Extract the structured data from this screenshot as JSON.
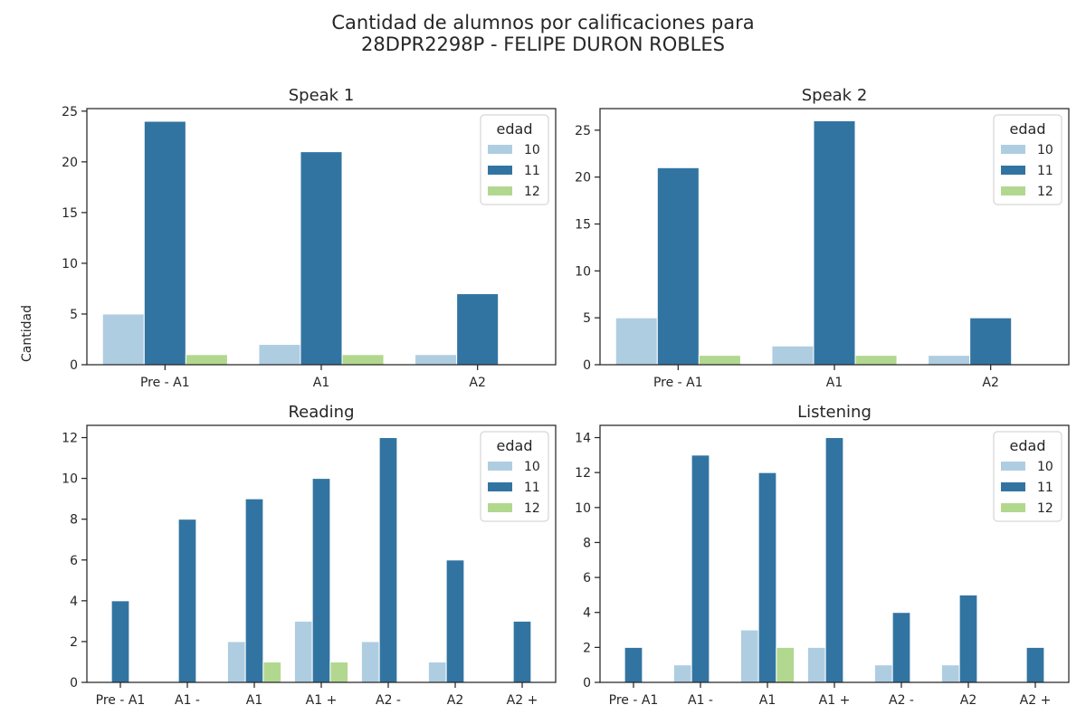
{
  "figure": {
    "title_line1": "Cantidad de alumnos por calificaciones para",
    "title_line2": "28DPR2298P - FELIPE DURON ROBLES",
    "ylabel": "Cantidad"
  },
  "colors": {
    "10": "#aecde1",
    "11": "#3274a1",
    "12": "#b2d88f"
  },
  "chart_data": [
    {
      "type": "bar",
      "title": "Speak 1",
      "categories": [
        "Pre - A1",
        "A1",
        "A2"
      ],
      "series": [
        {
          "name": "10",
          "values": [
            5,
            2,
            1
          ]
        },
        {
          "name": "11",
          "values": [
            24,
            21,
            7
          ]
        },
        {
          "name": "12",
          "values": [
            1,
            1,
            0
          ]
        }
      ],
      "ylim": [
        0,
        25.25
      ],
      "yticks": [
        0,
        5,
        10,
        15,
        20,
        25
      ],
      "legend": {
        "title": "edad",
        "placement": "top-right"
      }
    },
    {
      "type": "bar",
      "title": "Speak 2",
      "categories": [
        "Pre - A1",
        "A1",
        "A2"
      ],
      "series": [
        {
          "name": "10",
          "values": [
            5,
            2,
            1
          ]
        },
        {
          "name": "11",
          "values": [
            21,
            26,
            5
          ]
        },
        {
          "name": "12",
          "values": [
            1,
            1,
            0
          ]
        }
      ],
      "ylim": [
        0,
        27.3
      ],
      "yticks": [
        0,
        5,
        10,
        15,
        20,
        25
      ],
      "legend": {
        "title": "edad",
        "placement": "top-right"
      }
    },
    {
      "type": "bar",
      "title": "Reading",
      "categories": [
        "Pre - A1",
        "A1 -",
        "A1",
        "A1 +",
        "A2 -",
        "A2",
        "A2 +"
      ],
      "series": [
        {
          "name": "10",
          "values": [
            0,
            0,
            2,
            3,
            2,
            1,
            0
          ]
        },
        {
          "name": "11",
          "values": [
            4,
            8,
            9,
            10,
            12,
            6,
            3
          ]
        },
        {
          "name": "12",
          "values": [
            0,
            0,
            1,
            1,
            0,
            0,
            0
          ]
        }
      ],
      "ylim": [
        0,
        12.6
      ],
      "yticks": [
        0,
        2,
        4,
        6,
        8,
        10,
        12
      ],
      "legend": {
        "title": "edad",
        "placement": "top-right"
      }
    },
    {
      "type": "bar",
      "title": "Listening",
      "categories": [
        "Pre - A1",
        "A1 -",
        "A1",
        "A1 +",
        "A2 -",
        "A2",
        "A2 +"
      ],
      "series": [
        {
          "name": "10",
          "values": [
            0,
            1,
            3,
            2,
            1,
            1,
            0
          ]
        },
        {
          "name": "11",
          "values": [
            2,
            13,
            12,
            14,
            4,
            5,
            2
          ]
        },
        {
          "name": "12",
          "values": [
            0,
            0,
            2,
            0,
            0,
            0,
            0
          ]
        }
      ],
      "ylim": [
        0,
        14.7
      ],
      "yticks": [
        0,
        2,
        4,
        6,
        8,
        10,
        12,
        14
      ],
      "legend": {
        "title": "edad",
        "placement": "top-right"
      }
    }
  ]
}
